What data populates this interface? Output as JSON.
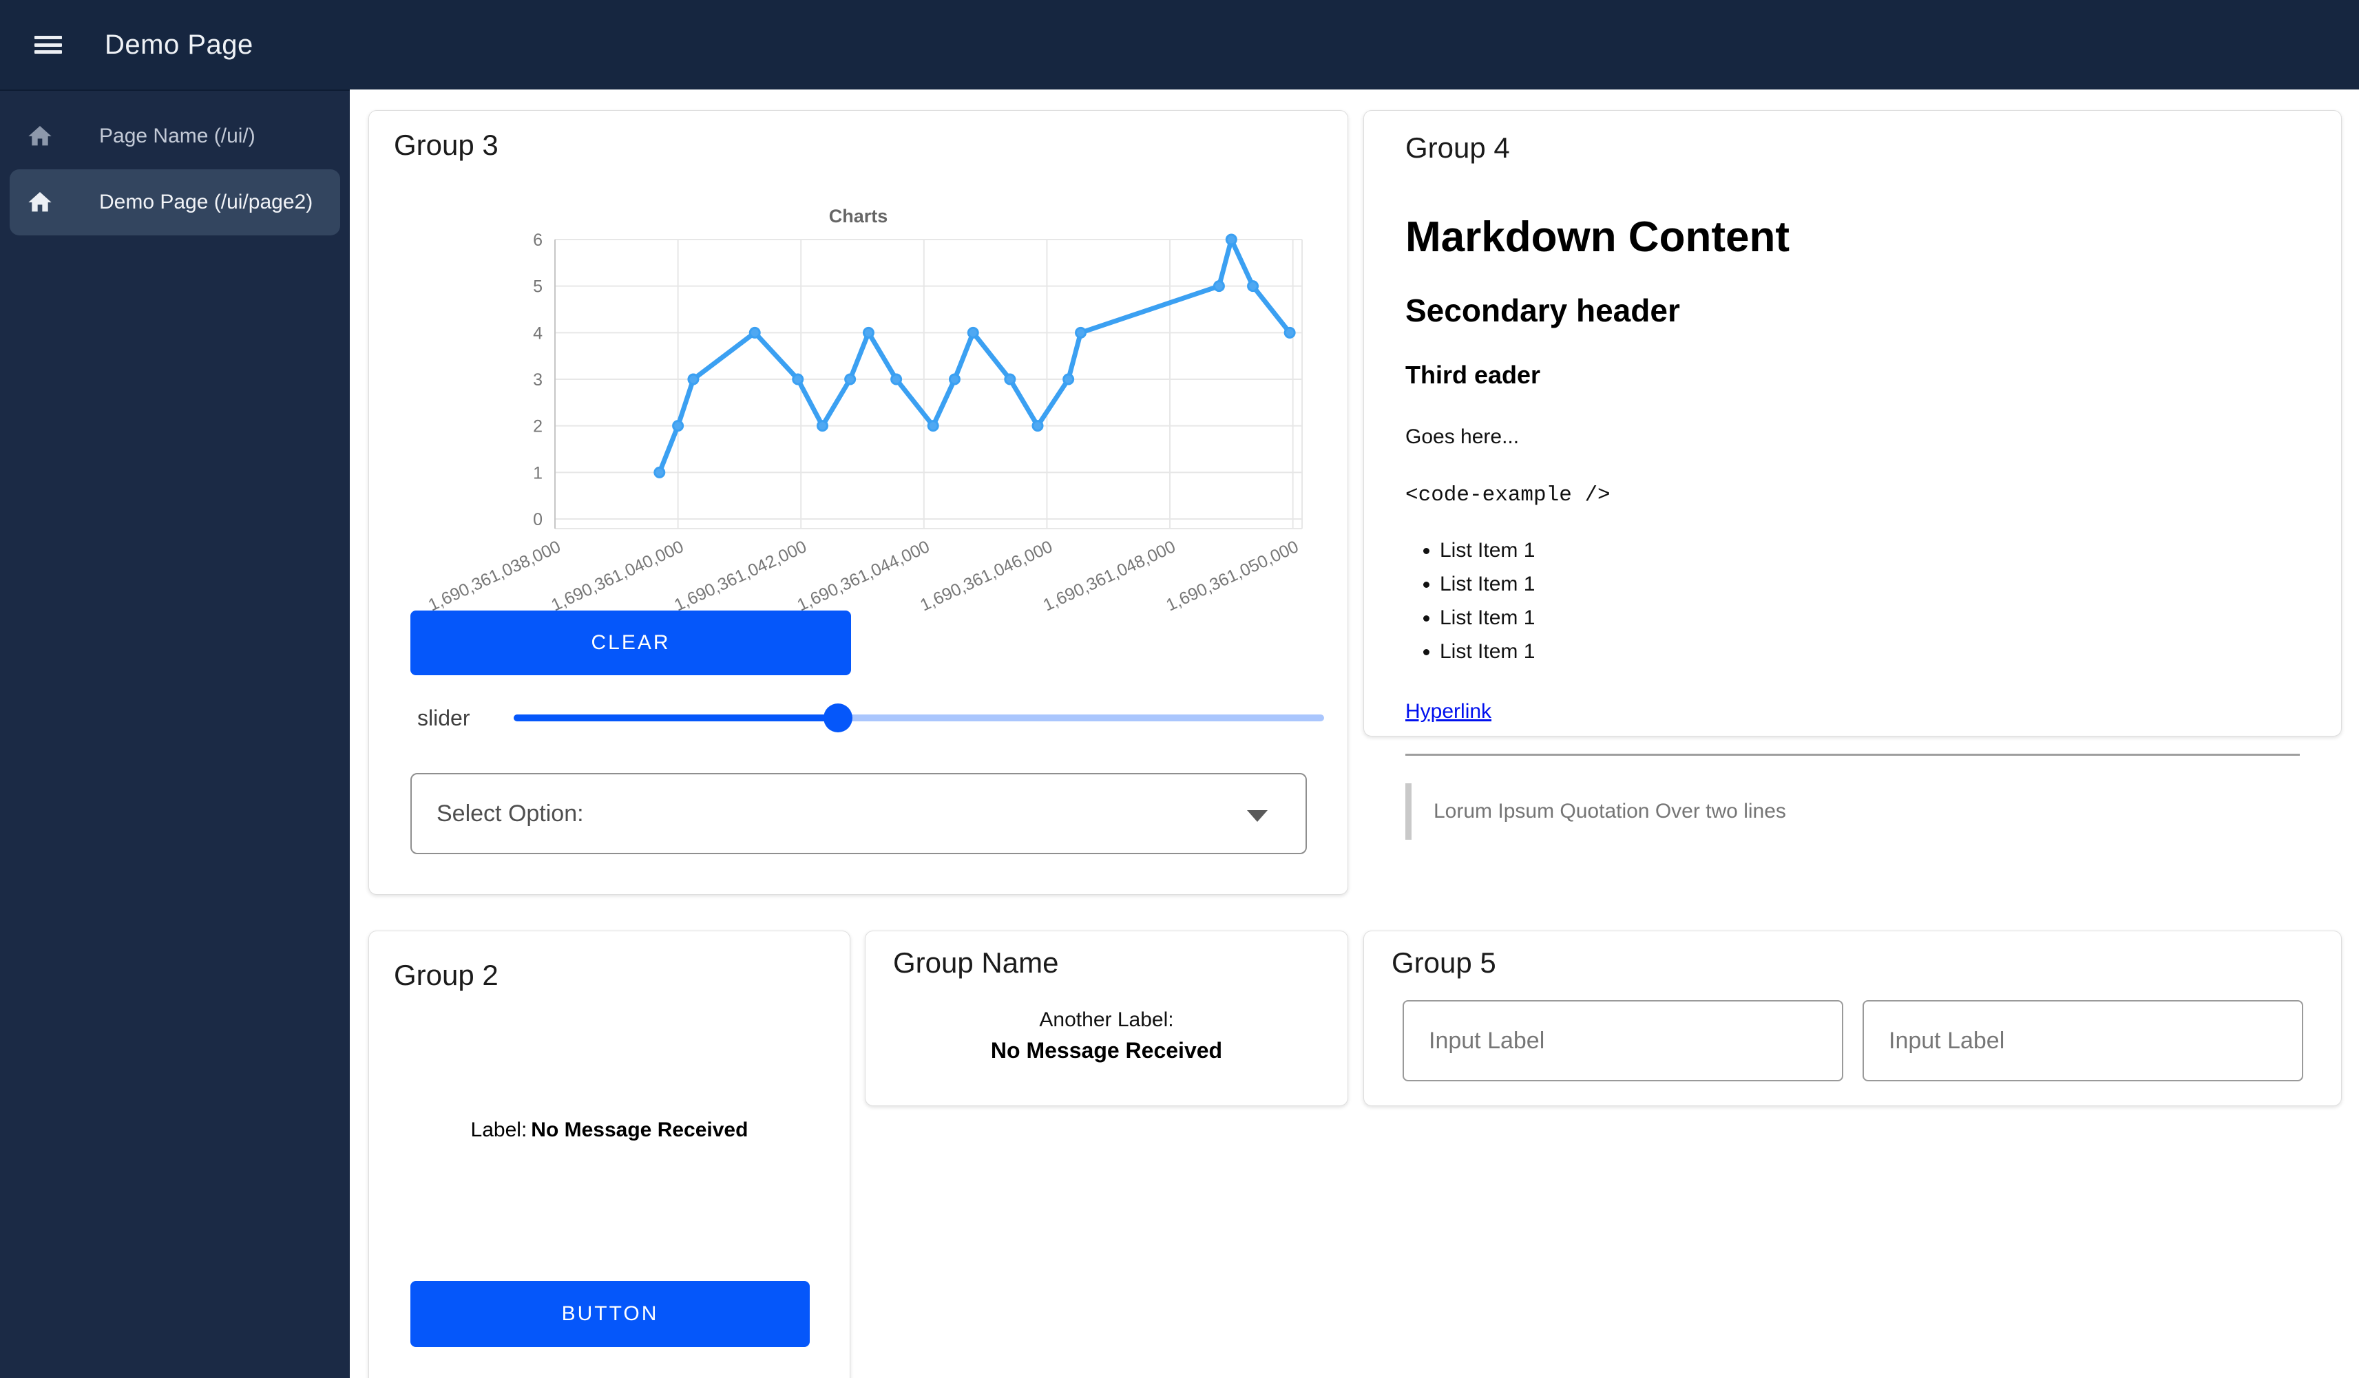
{
  "topbar": {
    "title": "Demo Page"
  },
  "sidebar": {
    "items": [
      {
        "label": "Page Name (/ui/)",
        "active": false
      },
      {
        "label": "Demo Page (/ui/page2)",
        "active": true
      }
    ]
  },
  "groups": {
    "group3": {
      "title": "Group 3",
      "clear_label": "CLEAR",
      "slider_label": "slider",
      "select_label": "Select Option:"
    },
    "group4": {
      "title": "Group 4",
      "h1": "Markdown Content",
      "h2": "Secondary header",
      "h3": "Third eader",
      "paragraph": "Goes here...",
      "code": "<code-example />",
      "list_items": [
        "List Item 1",
        "List Item 1",
        "List Item 1",
        "List Item 1"
      ],
      "link": "Hyperlink",
      "quote": "Lorum Ipsum Quotation Over two lines"
    },
    "group2": {
      "title": "Group 2",
      "label": "Label:",
      "value": "No Message Received",
      "button_label": "BUTTON"
    },
    "group_name": {
      "title": "Group Name",
      "label": "Another Label:",
      "value": "No Message Received"
    },
    "group5": {
      "title": "Group 5",
      "input1_placeholder": "Input Label",
      "input2_placeholder": "Input Label"
    }
  },
  "slider": {
    "value_percent": 40
  },
  "colors": {
    "accent_blue": "#0557fa",
    "navy_topbar": "#162640",
    "navy_sidebar": "#1b2a45",
    "sidebar_active": "#33455f",
    "chart_line": "#3ba0f2",
    "link_blue": "#0010ee"
  },
  "chart_data": {
    "type": "line",
    "title": "Charts",
    "x": [
      1690361039700,
      1690361040000,
      1690361040250,
      1690361041250,
      1690361041950,
      1690361042350,
      1690361042800,
      1690361043100,
      1690361043550,
      1690361044150,
      1690361044500,
      1690361044800,
      1690361045400,
      1690361045850,
      1690361046350,
      1690361046550,
      1690361048800,
      1690361049000,
      1690361049350,
      1690361049950
    ],
    "values": [
      1,
      2,
      3,
      4,
      3,
      2,
      3,
      4,
      3,
      2,
      3,
      4,
      3,
      2,
      3,
      4,
      5,
      6,
      5,
      4
    ],
    "x_ticks": [
      1690361038000,
      1690361040000,
      1690361042000,
      1690361044000,
      1690361046000,
      1690361048000,
      1690361050000
    ],
    "x_tick_labels": [
      "1,690,361,038,000",
      "1,690,361,040,000",
      "1,690,361,042,000",
      "1,690,361,044,000",
      "1,690,361,046,000",
      "1,690,361,048,000",
      "1,690,361,050,000"
    ],
    "y_ticks": [
      0,
      1,
      2,
      3,
      4,
      5,
      6
    ],
    "ylim": [
      0,
      6
    ],
    "xlim": [
      1690361038000,
      1690361050150
    ],
    "xlabel": "",
    "ylabel": "",
    "grid": true,
    "legend": false,
    "x_tick_rotation": -25,
    "line_color": "#3ba0f2",
    "point_fill": "#4fa8f2",
    "title_color": "#666666",
    "tick_color": "#777777"
  }
}
